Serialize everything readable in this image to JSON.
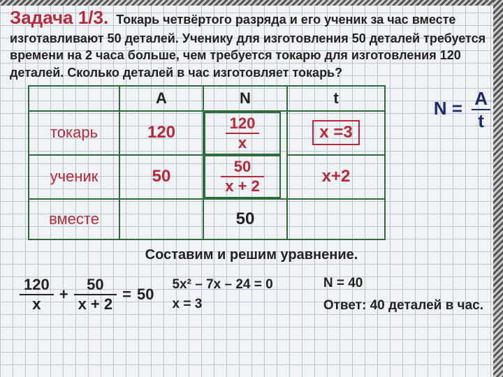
{
  "title": "Задача 1/3.",
  "problem_text": "Токарь четвёртого разряда и его ученик за час вместе изготавливают 50 деталей. Ученику для изготовления 50 деталей требуется времени на 2 часа больше, чем требуется токарю для изготовления 120 деталей. Сколько деталей в час изготовляет токарь?",
  "formula": {
    "lhs": "N",
    "num": "A",
    "den": "t"
  },
  "table": {
    "headers": [
      "",
      "A",
      "N",
      "t"
    ],
    "rows": [
      {
        "label": "токарь",
        "A": "120",
        "N_num": "120",
        "N_den": "x",
        "t": "x  =3",
        "t_boxed": true
      },
      {
        "label": "ученик",
        "A": "50",
        "N_num": "50",
        "N_den": "x + 2",
        "t": "x+2",
        "t_boxed": false
      },
      {
        "label": "вместе",
        "A": "",
        "N_plain": "50",
        "t": "",
        "t_boxed": false
      }
    ],
    "border_color": "#2e6b3a",
    "label_color": "#b82838",
    "value_color": "#b82838"
  },
  "solve_heading": "Составим и решим уравнение.",
  "equation": {
    "term1_num": "120",
    "term1_den": "x",
    "term2_num": "50",
    "term2_den": "x + 2",
    "rhs": "50"
  },
  "quadratic": "5x² – 7x – 24 = 0",
  "root": "x  =  3",
  "nresult": "N  =  40",
  "answer": "Ответ: 40 деталей в час.",
  "colors": {
    "title": "#b82838",
    "text": "#222222",
    "formula": "#1a2a6c",
    "grid": "#b8c4d4"
  }
}
